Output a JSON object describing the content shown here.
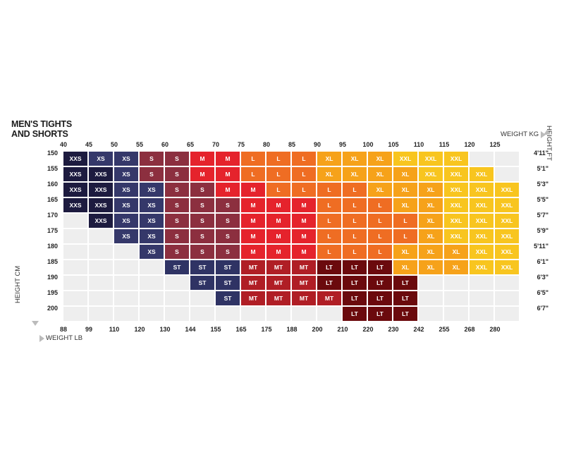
{
  "chart_data": {
    "type": "heatmap",
    "title": "MEN'S TIGHTS\nAND SHORTS",
    "x_top_label": "WEIGHT KG",
    "x_bottom_label": "WEIGHT LB",
    "y_left_label": "HEIGHT CM",
    "y_right_label": "HEIGHT FT",
    "weight_kg": [
      "40",
      "45",
      "50",
      "55",
      "60",
      "65",
      "70",
      "75",
      "80",
      "85",
      "90",
      "95",
      "100",
      "105",
      "110",
      "115",
      "120",
      "125"
    ],
    "weight_lb": [
      "88",
      "99",
      "110",
      "120",
      "130",
      "144",
      "155",
      "165",
      "175",
      "188",
      "200",
      "210",
      "220",
      "230",
      "242",
      "255",
      "268",
      "280"
    ],
    "height_cm": [
      "150",
      "155",
      "160",
      "165",
      "170",
      "175",
      "180",
      "185",
      "190",
      "195",
      "200"
    ],
    "height_ft": [
      "4'11\"",
      "5'1\"",
      "5'3\"",
      "5'5\"",
      "5'7\"",
      "5'9\"",
      "5'11\"",
      "6'1\"",
      "6'3\"",
      "6'5\"",
      "6'7\""
    ],
    "rows": [
      [
        "XXS",
        "XS",
        "XS",
        "S",
        "S",
        "M",
        "M",
        "L",
        "L",
        "L",
        "XL",
        "XL",
        "XL",
        "XXL",
        "XXL",
        "XXL",
        "",
        ""
      ],
      [
        "XXS",
        "XXS",
        "XS",
        "S",
        "S",
        "M",
        "M",
        "L",
        "L",
        "L",
        "XL",
        "XL",
        "XL",
        "XL",
        "XXL",
        "XXL",
        "XXL",
        ""
      ],
      [
        "XXS",
        "XXS",
        "XS",
        "XS",
        "S",
        "S",
        "M",
        "M",
        "L",
        "L",
        "L",
        "L",
        "XL",
        "XL",
        "XL",
        "XXL",
        "XXL",
        "XXL"
      ],
      [
        "XXS",
        "XXS",
        "XS",
        "XS",
        "S",
        "S",
        "S",
        "M",
        "M",
        "M",
        "L",
        "L",
        "L",
        "XL",
        "XL",
        "XXL",
        "XXL",
        "XXL"
      ],
      [
        "",
        "XXS",
        "XS",
        "XS",
        "S",
        "S",
        "S",
        "M",
        "M",
        "M",
        "L",
        "L",
        "L",
        "L",
        "XL",
        "XXL",
        "XXL",
        "XXL"
      ],
      [
        "",
        "",
        "XS",
        "XS",
        "S",
        "S",
        "S",
        "M",
        "M",
        "M",
        "L",
        "L",
        "L",
        "L",
        "XL",
        "XXL",
        "XXL",
        "XXL"
      ],
      [
        "",
        "",
        "",
        "XS",
        "S",
        "S",
        "S",
        "M",
        "M",
        "M",
        "L",
        "L",
        "L",
        "XL",
        "XL",
        "XL",
        "XXL",
        "XXL"
      ],
      [
        "",
        "",
        "",
        "",
        "ST",
        "ST",
        "ST",
        "MT",
        "MT",
        "MT",
        "LT",
        "LT",
        "LT",
        "XL",
        "XL",
        "XL",
        "XXL",
        "XXL"
      ],
      [
        "",
        "",
        "",
        "",
        "",
        "ST",
        "ST",
        "MT",
        "MT",
        "MT",
        "LT",
        "LT",
        "LT",
        "LT",
        "",
        "",
        "",
        ""
      ],
      [
        "",
        "",
        "",
        "",
        "",
        "",
        "ST",
        "MT",
        "MT",
        "MT",
        "MT",
        "LT",
        "LT",
        "LT",
        "",
        "",
        "",
        ""
      ],
      [
        "",
        "",
        "",
        "",
        "",
        "",
        "",
        "",
        "",
        "",
        "",
        "LT",
        "LT",
        "LT",
        "",
        "",
        "",
        ""
      ]
    ],
    "size_colors": {
      "XXS": "#1d1b3f",
      "XS": "#35386a",
      "S": "#8c2f3f",
      "M": "#e5232c",
      "L": "#ef6d23",
      "XL": "#f6a21a",
      "XXL": "#f8c51f",
      "ST": "#2f3364",
      "MT": "#b01e25",
      "LT": "#6b0a0d",
      "empty": "#eeeeee"
    }
  }
}
